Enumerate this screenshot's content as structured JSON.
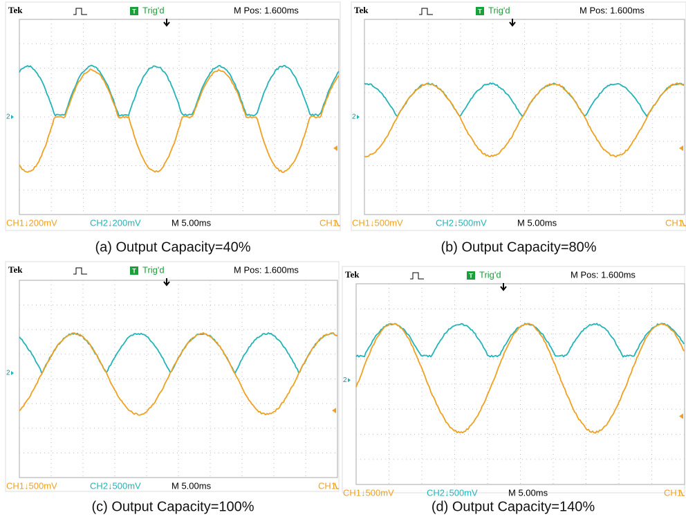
{
  "panels": [
    {
      "brand": "Tek",
      "trigger_icon": "T",
      "trigger_status": "Trig'd",
      "position": "M Pos: 1.600ms",
      "channel_marker": "2",
      "ch1_scale": "CH1↓200mV",
      "ch2_scale": "CH2↓200mV",
      "timebase": "M 5.00ms",
      "trigger_source": "CH1",
      "caption": "(a) Output Capacity=40%"
    },
    {
      "brand": "Tek",
      "trigger_icon": "T",
      "trigger_status": "Trig'd",
      "position": "M Pos: 1.600ms",
      "channel_marker": "2",
      "ch1_scale": "CH1↓500mV",
      "ch2_scale": "CH2↓500mV",
      "timebase": "M 5.00ms",
      "trigger_source": "CH1",
      "caption": "(b) Output Capacity=80%"
    },
    {
      "brand": "Tek",
      "trigger_icon": "T",
      "trigger_status": "Trig'd",
      "position": "M Pos: 1.600ms",
      "channel_marker": "2",
      "ch1_scale": "CH1↓500mV",
      "ch2_scale": "CH2↓500mV",
      "timebase": "M 5.00ms",
      "trigger_source": "CH1",
      "caption": "(c) Output Capacity=100%"
    },
    {
      "brand": "Tek",
      "trigger_icon": "T",
      "trigger_status": "Trig'd",
      "position": "M Pos: 1.600ms",
      "channel_marker": "2",
      "ch1_scale": "CH1↓500mV",
      "ch2_scale": "CH2↓500mV",
      "timebase": "M 5.00ms",
      "trigger_source": "CH1",
      "caption": "(d) Output Capacity=140%"
    }
  ]
}
